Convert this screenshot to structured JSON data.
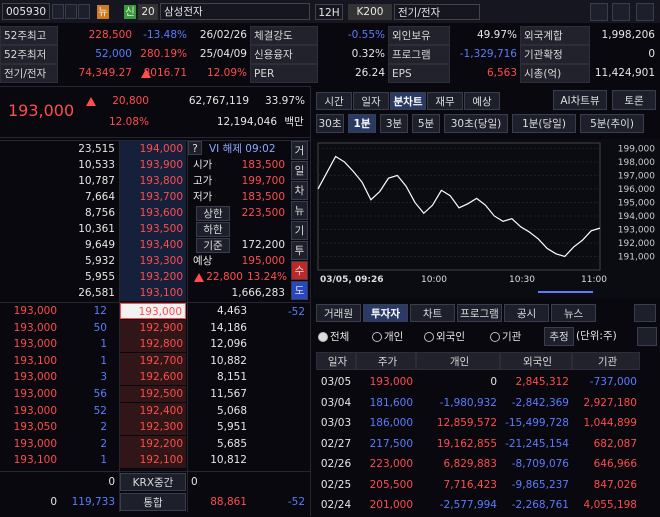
{
  "header": {
    "code": "005930",
    "badges": [
      "뉴",
      "신"
    ],
    "count": "20",
    "name": "삼성전자",
    "period": "12H",
    "index": "K200",
    "sector": "전기/전자"
  },
  "info": {
    "rows": [
      [
        "52주최고",
        "228,500",
        "-13.48%",
        "26/02/26",
        "체결강도",
        "-0.55%",
        "외인보유",
        "49.97%",
        "외국계합",
        "1,998,206"
      ],
      [
        "52주최저",
        "52,000",
        "280.19%",
        "25/04/09",
        "신용융자",
        "0.32%",
        "프로그램",
        "-1,329,716",
        "기관확정",
        "0"
      ],
      [
        "전기/전자",
        "74,349.27",
        "8016.71",
        "12.09%",
        "PER",
        "26.24",
        "EPS",
        "6,563",
        "시총(억)",
        "11,424,901"
      ]
    ]
  },
  "quote": {
    "price": "193,000",
    "change": "20,800",
    "volume": "62,767,119",
    "turnover": "33.97%",
    "change_rate": "12.08%",
    "amount": "12,194,046",
    "amount_unit": "백만"
  },
  "tabs": [
    "시간",
    "일자",
    "분차트",
    "재무",
    "예상"
  ],
  "top_buttons": [
    "AI차트뷰",
    "토론"
  ],
  "intervals": [
    "30초",
    "1분",
    "3분",
    "5분",
    "30초(당일)",
    "1분(당일)",
    "5분(추이)"
  ],
  "orderbook": {
    "asks": [
      [
        "23,515",
        "194,000"
      ],
      [
        "10,533",
        "193,900"
      ],
      [
        "10,787",
        "193,800"
      ],
      [
        "7,664",
        "193,700"
      ],
      [
        "8,756",
        "193,600"
      ],
      [
        "10,361",
        "193,500"
      ],
      [
        "9,649",
        "193,400"
      ],
      [
        "5,932",
        "193,300"
      ],
      [
        "5,955",
        "193,200"
      ],
      [
        "26,581",
        "193,100"
      ]
    ],
    "bids": [
      [
        "193,000",
        "12",
        "193,000",
        "4,463"
      ],
      [
        "193,000",
        "50",
        "192,900",
        "14,186"
      ],
      [
        "193,000",
        "1",
        "192,800",
        "12,096"
      ],
      [
        "193,100",
        "1",
        "192,700",
        "10,882"
      ],
      [
        "193,000",
        "3",
        "192,600",
        "8,151"
      ],
      [
        "193,000",
        "56",
        "192,500",
        "11,567"
      ],
      [
        "193,000",
        "52",
        "192,400",
        "5,068"
      ],
      [
        "193,050",
        "2",
        "192,300",
        "5,951"
      ],
      [
        "193,000",
        "2",
        "192,200",
        "5,685"
      ],
      [
        "193,100",
        "1",
        "192,100",
        "10,812"
      ]
    ],
    "vi_help": "?",
    "vi": "VI 해제 09:02",
    "stats": [
      [
        "시가",
        "183,500"
      ],
      [
        "고가",
        "199,700"
      ],
      [
        "저가",
        "183,500"
      ],
      [
        "상한",
        "223,500"
      ],
      [
        "하한"
      ],
      [
        "기준",
        "172,200"
      ],
      [
        "예상",
        "195,000"
      ]
    ],
    "expected_change": "22,800",
    "expected_rate": "13.24%",
    "expected_volume": "1,666,283",
    "bid_change": "-52",
    "side_buttons": [
      "거",
      "일",
      "차",
      "뉴",
      "기",
      "투",
      "수",
      "도"
    ],
    "footer": {
      "krx_ask": "0",
      "krx_label": "KRX중간",
      "krx_bid": "0",
      "total_left": "0",
      "total_ask": "119,733",
      "total_label": "통합",
      "total_bid": "88,861",
      "total_change": "-52"
    }
  },
  "mini_chart": {
    "type": "line",
    "color": "#ffffff",
    "values": [
      196000,
      197200,
      198400,
      198000,
      197300,
      196500,
      195200,
      195800,
      196800,
      197000,
      196200,
      195000,
      194200,
      194800,
      195900,
      195500,
      194600,
      194900,
      195300,
      194800,
      194000,
      193600,
      193800,
      193200,
      192800,
      192300,
      191600,
      191200,
      191000,
      191700,
      192200,
      192900,
      193100
    ],
    "ylim": [
      190000,
      199400
    ],
    "yticks": [
      {
        "value": 199000,
        "label": "199,000"
      },
      {
        "value": 198000,
        "label": "198,000"
      },
      {
        "value": 197000,
        "label": "197,000"
      },
      {
        "value": 196000,
        "label": "196,000"
      },
      {
        "value": 195000,
        "label": "195,000"
      },
      {
        "value": 194000,
        "label": "194,000"
      },
      {
        "value": 193000,
        "label": "193,000"
      },
      {
        "value": 192000,
        "label": "192,000"
      },
      {
        "value": 191000,
        "label": "191,000"
      }
    ],
    "x_labels": [
      "03/05, 09:26",
      "10:00",
      "10:30",
      "11:00"
    ],
    "grid": true
  },
  "investor": {
    "tabs": [
      "거래원",
      "투자자",
      "차트",
      "프로그램",
      "공시",
      "뉴스"
    ],
    "options": [
      "전체",
      "개인",
      "외국인",
      "기관"
    ],
    "estimate": "추정",
    "unit": "(단위:주)",
    "columns": [
      "일자",
      "주가",
      "개인",
      "외국인",
      "기관"
    ],
    "price_colors": [
      "#ff4d4d",
      "#5c7cff",
      "#5c7cff",
      "#5c7cff",
      "#ff4d4d",
      "#ff4d4d",
      "#ff4d4d"
    ],
    "rows": [
      [
        "03/05",
        "193,000",
        "0",
        "2,845,312",
        "-737,000"
      ],
      [
        "03/04",
        "181,600",
        "-1,980,932",
        "-2,842,369",
        "2,927,180"
      ],
      [
        "03/03",
        "186,000",
        "12,859,572",
        "-15,499,728",
        "1,044,899"
      ],
      [
        "02/27",
        "217,500",
        "19,162,855",
        "-21,245,154",
        "682,087"
      ],
      [
        "02/26",
        "223,000",
        "6,829,883",
        "-8,709,076",
        "646,966"
      ],
      [
        "02/25",
        "205,500",
        "7,716,423",
        "-9,865,237",
        "847,026"
      ],
      [
        "02/24",
        "201,000",
        "-2,577,994",
        "-2,268,761",
        "4,055,198"
      ]
    ]
  }
}
